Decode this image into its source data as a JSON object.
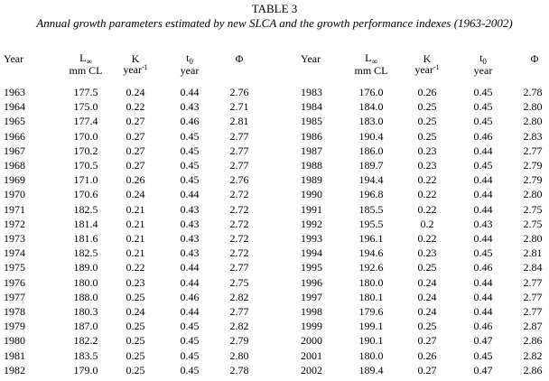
{
  "table": {
    "title": "TABLE 3",
    "caption": "Annual growth parameters estimated by new SLCA and the growth performance indexes (1963-2002)",
    "headers": {
      "year": "Year",
      "linf_symbol": "L",
      "linf_sub": "∞",
      "linf_unit": "mm CL",
      "k": "K",
      "k_unit": "year",
      "k_unit_sup": "-1",
      "t0_symbol": "t",
      "t0_sub": "0",
      "t0_unit": "year",
      "phi": "Φ"
    },
    "rows_left": [
      [
        "1963",
        "177.5",
        "0.24",
        "0.44",
        "2.76"
      ],
      [
        "1964",
        "175.0",
        "0.22",
        "0.43",
        "2.71"
      ],
      [
        "1965",
        "177.4",
        "0.27",
        "0.46",
        "2.81"
      ],
      [
        "1966",
        "170.0",
        "0.27",
        "0.45",
        "2.77"
      ],
      [
        "1967",
        "170.2",
        "0.27",
        "0.45",
        "2.77"
      ],
      [
        "1968",
        "170.5",
        "0.27",
        "0.45",
        "2.77"
      ],
      [
        "1969",
        "171.0",
        "0.26",
        "0.45",
        "2.76"
      ],
      [
        "1970",
        "170.6",
        "0.24",
        "0.44",
        "2.72"
      ],
      [
        "1971",
        "182.5",
        "0.21",
        "0.43",
        "2.72"
      ],
      [
        "1972",
        "181.4",
        "0.21",
        "0.43",
        "2.72"
      ],
      [
        "1973",
        "181.6",
        "0.21",
        "0.43",
        "2.72"
      ],
      [
        "1974",
        "182.5",
        "0.21",
        "0.43",
        "2.72"
      ],
      [
        "1975",
        "189.0",
        "0.22",
        "0.44",
        "2.77"
      ],
      [
        "1976",
        "180.0",
        "0.23",
        "0.44",
        "2.75"
      ],
      [
        "1977",
        "188.0",
        "0.25",
        "0.46",
        "2.82"
      ],
      [
        "1978",
        "180.3",
        "0.24",
        "0.44",
        "2.77"
      ],
      [
        "1979",
        "187.0",
        "0.25",
        "0.45",
        "2.82"
      ],
      [
        "1980",
        "182.2",
        "0.25",
        "0.45",
        "2.79"
      ],
      [
        "1981",
        "183.5",
        "0.25",
        "0.45",
        "2.80"
      ],
      [
        "1982",
        "179.0",
        "0.25",
        "0.45",
        "2.78"
      ]
    ],
    "rows_right": [
      [
        "1983",
        "176.0",
        "0.26",
        "0.45",
        "2.78"
      ],
      [
        "1984",
        "184.0",
        "0.25",
        "0.45",
        "2.80"
      ],
      [
        "1985",
        "183.0",
        "0.25",
        "0.45",
        "2.80"
      ],
      [
        "1986",
        "190.4",
        "0.25",
        "0.46",
        "2.83"
      ],
      [
        "1987",
        "186.0",
        "0.23",
        "0.44",
        "2.77"
      ],
      [
        "1988",
        "189.7",
        "0.23",
        "0.45",
        "2.79"
      ],
      [
        "1989",
        "194.4",
        "0.22",
        "0.44",
        "2.79"
      ],
      [
        "1990",
        "196.8",
        "0.22",
        "0.44",
        "2.80"
      ],
      [
        "1991",
        "185.5",
        "0.22",
        "0.44",
        "2.75"
      ],
      [
        "1992",
        "195.5",
        "0.2",
        "0.43",
        "2.75"
      ],
      [
        "1993",
        "196.1",
        "0.22",
        "0.44",
        "2.80"
      ],
      [
        "1994",
        "194.6",
        "0.23",
        "0.45",
        "2.81"
      ],
      [
        "1995",
        "192.6",
        "0.25",
        "0.46",
        "2.84"
      ],
      [
        "1996",
        "180.0",
        "0.24",
        "0.44",
        "2.77"
      ],
      [
        "1997",
        "180.1",
        "0.24",
        "0.44",
        "2.77"
      ],
      [
        "1998",
        "179.6",
        "0.24",
        "0.44",
        "2.77"
      ],
      [
        "1999",
        "199.1",
        "0.25",
        "0.46",
        "2.87"
      ],
      [
        "2000",
        "190.1",
        "0.27",
        "0.47",
        "2.86"
      ],
      [
        "2001",
        "180.0",
        "0.26",
        "0.45",
        "2.82"
      ],
      [
        "2002",
        "189.4",
        "0.27",
        "0.47",
        "2.86"
      ]
    ]
  }
}
